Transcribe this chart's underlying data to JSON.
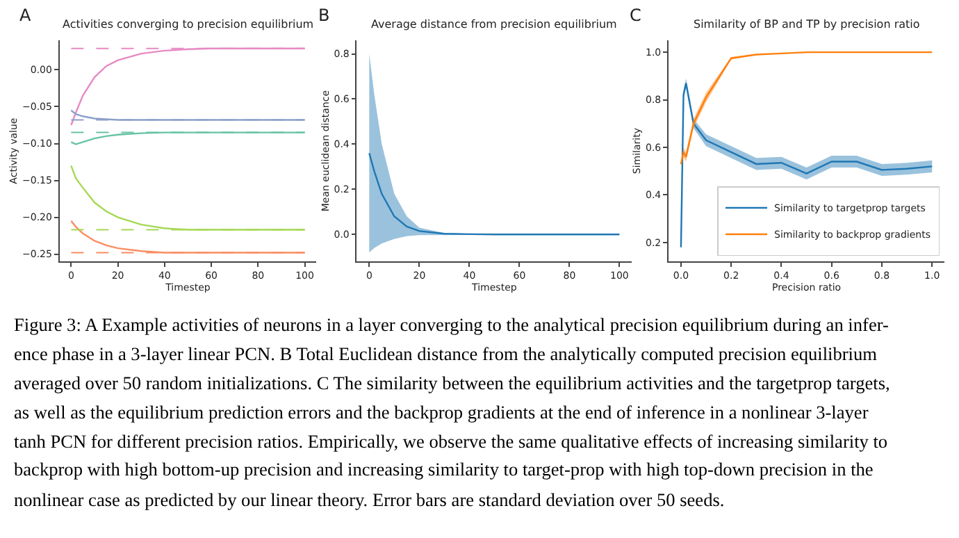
{
  "chart_data": [
    {
      "type": "line",
      "title": "Activities converging to precision equilibrium",
      "xlabel": "Timestep",
      "ylabel": "Activity value",
      "annotations": [
        "A"
      ],
      "x": [
        0,
        2,
        5,
        10,
        15,
        20,
        30,
        40,
        50,
        60,
        80,
        100
      ],
      "series": [
        {
          "color": "#e78ac3",
          "values": [
            -0.075,
            -0.058,
            -0.035,
            -0.01,
            0.005,
            0.013,
            0.022,
            0.026,
            0.028,
            0.029,
            0.029,
            0.029
          ]
        },
        {
          "color": "#8da0cb",
          "values": [
            -0.055,
            -0.06,
            -0.063,
            -0.066,
            -0.067,
            -0.068,
            -0.068,
            -0.068,
            -0.068,
            -0.068,
            -0.068,
            -0.068
          ]
        },
        {
          "color": "#66c2a5",
          "values": [
            -0.098,
            -0.101,
            -0.098,
            -0.093,
            -0.09,
            -0.088,
            -0.086,
            -0.085,
            -0.085,
            -0.085,
            -0.085,
            -0.085
          ]
        },
        {
          "color": "#a6d854",
          "values": [
            -0.13,
            -0.147,
            -0.16,
            -0.18,
            -0.192,
            -0.2,
            -0.21,
            -0.215,
            -0.217,
            -0.217,
            -0.217,
            -0.217
          ]
        },
        {
          "color": "#fc8d62",
          "values": [
            -0.205,
            -0.213,
            -0.222,
            -0.232,
            -0.238,
            -0.242,
            -0.246,
            -0.248,
            -0.248,
            -0.248,
            -0.248,
            -0.248
          ]
        }
      ],
      "ref_lines": [
        {
          "axis": "y",
          "value": 0.029,
          "color": "#e78ac3",
          "line_style": "dashed"
        },
        {
          "axis": "y",
          "value": -0.068,
          "color": "#8da0cb",
          "line_style": "dashed"
        },
        {
          "axis": "y",
          "value": -0.085,
          "color": "#66c2a5",
          "line_style": "dashed"
        },
        {
          "axis": "y",
          "value": -0.217,
          "color": "#a6d854",
          "line_style": "dashed"
        },
        {
          "axis": "y",
          "value": -0.248,
          "color": "#fc8d62",
          "line_style": "dashed"
        }
      ],
      "xlim": [
        -5,
        105
      ],
      "xticks": [
        0,
        20,
        40,
        60,
        80,
        100
      ],
      "ylim": [
        -0.26,
        0.04
      ],
      "yticks": [
        {
          "value": -0.25,
          "label": "−0.25"
        },
        {
          "value": -0.2,
          "label": "−0.20"
        },
        {
          "value": -0.15,
          "label": "−0.15"
        },
        {
          "value": -0.1,
          "label": "−0.10"
        },
        {
          "value": -0.05,
          "label": "−0.05"
        },
        {
          "value": 0,
          "label": "0.00"
        }
      ],
      "legend": false,
      "marker": "none",
      "line_style": "solid"
    },
    {
      "type": "line",
      "title": "Average distance from precision equilibrium",
      "xlabel": "Timestep",
      "ylabel": "Mean euclidean distance",
      "annotations": [
        "B"
      ],
      "x": [
        0,
        2,
        5,
        10,
        15,
        20,
        30,
        40,
        50,
        60,
        80,
        100
      ],
      "series": [
        {
          "color": "#1f77b4",
          "values": [
            0.36,
            0.28,
            0.18,
            0.08,
            0.035,
            0.015,
            0.003,
            0.001,
            0,
            0,
            0,
            0
          ],
          "lower": [
            -0.08,
            -0.06,
            -0.04,
            -0.02,
            -0.008,
            -0.003,
            0,
            0,
            0,
            0,
            0,
            0
          ],
          "upper": [
            0.8,
            0.62,
            0.4,
            0.18,
            0.08,
            0.03,
            0.006,
            0.002,
            0,
            0,
            0,
            0
          ]
        }
      ],
      "xlim": [
        -5,
        105
      ],
      "xticks": [
        0,
        20,
        40,
        60,
        80,
        100
      ],
      "ylim": [
        -0.12,
        0.86
      ],
      "yticks": [
        {
          "value": 0,
          "label": "0.0"
        },
        0.2,
        0.4,
        0.6,
        0.8
      ],
      "legend": false,
      "marker": "none",
      "line_style": "solid"
    },
    {
      "type": "line",
      "title": "Similarity of BP and TP by precision ratio",
      "xlabel": "Precision ratio",
      "ylabel": "Similarity",
      "annotations": [
        "C"
      ],
      "x": [
        0,
        0.01,
        0.02,
        0.05,
        0.1,
        0.2,
        0.3,
        0.4,
        0.5,
        0.6,
        0.7,
        0.8,
        0.9,
        1.0
      ],
      "series": [
        {
          "name": "Similarity to targetprop targets",
          "color": "#1f77b4",
          "values": [
            0.18,
            0.82,
            0.87,
            0.7,
            0.63,
            0.58,
            0.53,
            0.535,
            0.49,
            0.54,
            0.54,
            0.505,
            0.51,
            0.52
          ],
          "lower": [
            0.18,
            0.8,
            0.85,
            0.68,
            0.605,
            0.555,
            0.505,
            0.51,
            0.465,
            0.515,
            0.515,
            0.48,
            0.485,
            0.495
          ],
          "upper": [
            0.18,
            0.84,
            0.89,
            0.72,
            0.655,
            0.605,
            0.555,
            0.56,
            0.515,
            0.565,
            0.565,
            0.53,
            0.535,
            0.545
          ]
        },
        {
          "name": "Similarity to backprop gradients",
          "color": "#ff7f0e",
          "values": [
            0.53,
            0.58,
            0.56,
            0.7,
            0.81,
            0.975,
            0.99,
            0.995,
            1.0,
            1.0,
            1.0,
            1.0,
            1.0,
            1.0
          ],
          "lower": [
            0.52,
            0.56,
            0.54,
            0.68,
            0.79,
            0.97,
            0.988,
            0.994,
            0.999,
            0.999,
            0.999,
            0.999,
            0.999,
            0.999
          ],
          "upper": [
            0.54,
            0.6,
            0.58,
            0.72,
            0.83,
            0.98,
            0.992,
            0.996,
            1.0,
            1.0,
            1.0,
            1.0,
            1.0,
            1.0
          ]
        }
      ],
      "xlim": [
        -0.05,
        1.05
      ],
      "xticks": [
        {
          "value": 0,
          "label": "0.0"
        },
        0.2,
        0.4,
        0.6,
        0.8,
        {
          "value": 1,
          "label": "1.0"
        }
      ],
      "ylim": [
        0.12,
        1.05
      ],
      "yticks": [
        0.2,
        0.4,
        0.6,
        0.8,
        {
          "value": 1,
          "label": "1.0"
        }
      ],
      "legend": "bottom right",
      "marker": "none",
      "line_style": "solid"
    },
    {
      "type": "other",
      "annotations": [
        "Figure 3: A Example activities of neurons in a layer converging to the analytical precision equilibrium during an infer-",
        "ence phase in a 3-layer linear PCN. B Total Euclidean distance from the analytically computed precision equilibrium",
        "averaged over 50 random initializations. C The similarity between the equilibrium activities and the targetprop targets,",
        "as well as the equilibrium prediction errors and the backprop gradients at the end of inference in a nonlinear 3-layer",
        "tanh PCN for different precision ratios. Empirically, we observe the same qualitative effects of increasing similarity to",
        "backprop with high bottom-up precision and increasing similarity to target-prop with high top-down precision in the",
        "nonlinear case as predicted by our linear theory. Error bars are standard deviation over 50 seeds."
      ]
    }
  ]
}
